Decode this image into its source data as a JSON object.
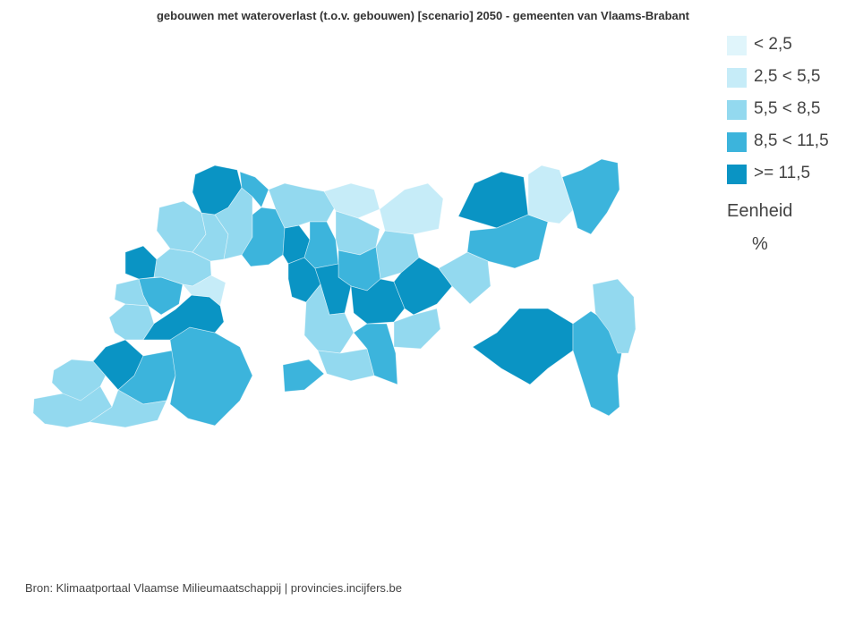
{
  "title": "gebouwen met wateroverlast (t.o.v. gebouwen) [scenario] 2050 - gemeenten van Vlaams-Brabant",
  "legend": {
    "classes": [
      {
        "label": "< 2,5",
        "color": "#e0f5fb"
      },
      {
        "label": "2,5 < 5,5",
        "color": "#c6ecf8"
      },
      {
        "label": "5,5 < 8,5",
        "color": "#93d9ef"
      },
      {
        "label": "8,5 < 11,5",
        "color": "#3cb4dc"
      },
      {
        "label": ">= 11,5",
        "color": "#0a94c4"
      }
    ],
    "unit_title": "Eenheid",
    "unit": "%"
  },
  "source": "Bron: Klimaatportaal Vlaamse Milieumaatschappij | provincies.incijfers.be",
  "municipality_classes": [
    2,
    2,
    4,
    3,
    2,
    3,
    2,
    4,
    2,
    3,
    4,
    2,
    1,
    2,
    2,
    4,
    2,
    3,
    3,
    4,
    2,
    4,
    1,
    3,
    2,
    3,
    4,
    2,
    2,
    3,
    3,
    4,
    1,
    2,
    4,
    2,
    4,
    3,
    2,
    1,
    3,
    4,
    3,
    2
  ]
}
